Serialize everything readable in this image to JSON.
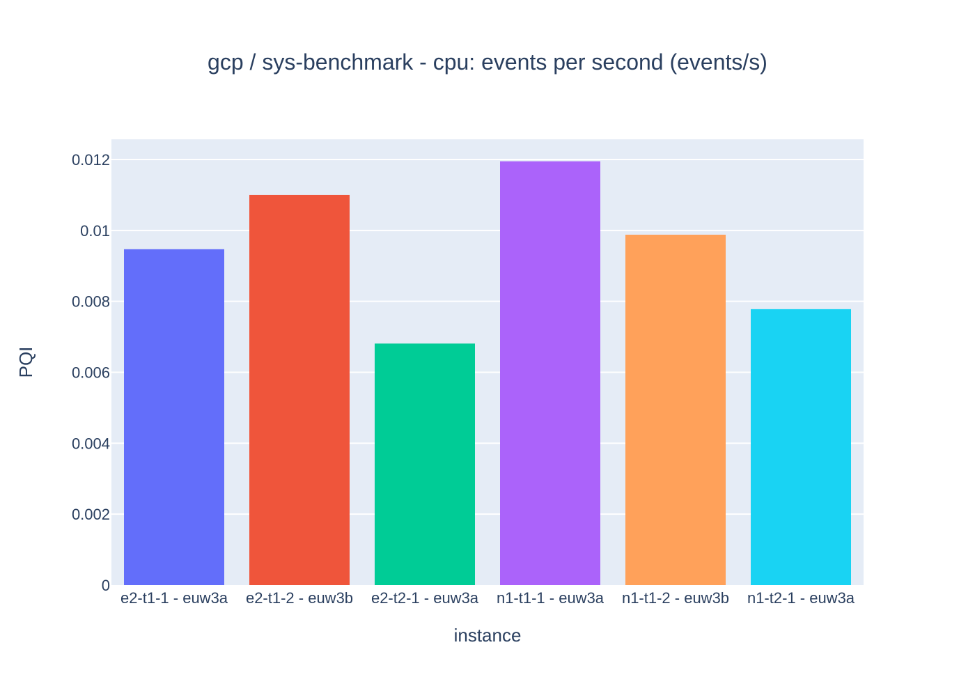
{
  "chart_data": {
    "type": "bar",
    "title": "gcp / sys-benchmark - cpu: events per second (events/s)",
    "xlabel": "instance",
    "ylabel": "PQI",
    "categories": [
      "e2-t1-1 - euw3a",
      "e2-t1-2 - euw3b",
      "e2-t2-1 - euw3a",
      "n1-t1-1 - euw3a",
      "n1-t1-2 - euw3b",
      "n1-t2-1 - euw3a"
    ],
    "values": [
      0.00947,
      0.011,
      0.00681,
      0.01195,
      0.00988,
      0.00778
    ],
    "colors": [
      "#636efa",
      "#ef553b",
      "#00cc96",
      "#ab63fa",
      "#ffa15a",
      "#19d3f3"
    ],
    "ylim": [
      0,
      0.01257
    ],
    "yticks": [
      0,
      0.002,
      0.004,
      0.006,
      0.008,
      0.01,
      0.012
    ],
    "ytick_labels": [
      "0",
      "0.002",
      "0.004",
      "0.006",
      "0.008",
      "0.01",
      "0.012"
    ],
    "grid": true,
    "legend": "none",
    "plot_background": "#e5ecf6",
    "text_color": "#2a3f5f"
  }
}
